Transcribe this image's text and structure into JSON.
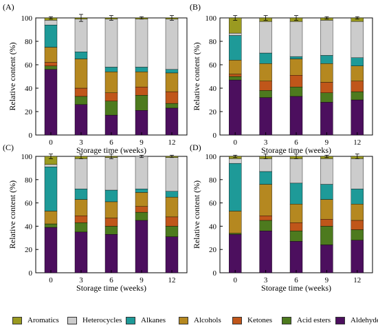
{
  "legend": [
    {
      "name": "Aromatics",
      "color": "#9a9a20"
    },
    {
      "name": "Heterocycles",
      "color": "#cccccc"
    },
    {
      "name": "Alkanes",
      "color": "#1e9a98"
    },
    {
      "name": "Alcohols",
      "color": "#b58820"
    },
    {
      "name": "Ketones",
      "color": "#c0561a"
    },
    {
      "name": "Acid esters",
      "color": "#4d7a1e"
    },
    {
      "name": "Aldehyde",
      "color": "#4c0f5e"
    }
  ],
  "chart_data": [
    {
      "panel": "(A)",
      "type": "bar",
      "stacked": true,
      "xlabel": "Storage time (weeks)",
      "ylabel": "Relative content (%)",
      "categories": [
        "0",
        "3",
        "6",
        "9",
        "12"
      ],
      "ylim": [
        0,
        100
      ],
      "yticks": [
        "0",
        "20",
        "40",
        "60",
        "80",
        "100"
      ],
      "series": [
        {
          "name": "Aldehyde",
          "values": [
            56,
            26,
            17,
            21,
            23
          ]
        },
        {
          "name": "Acid esters",
          "values": [
            3,
            7,
            12,
            13,
            4
          ]
        },
        {
          "name": "Ketones",
          "values": [
            3,
            7,
            7,
            7,
            10
          ]
        },
        {
          "name": "Alcohols",
          "values": [
            13,
            25,
            18,
            13,
            16
          ]
        },
        {
          "name": "Alkanes",
          "values": [
            19,
            6,
            4,
            4,
            3
          ]
        },
        {
          "name": "Heterocycles",
          "values": [
            4,
            28,
            41,
            41,
            43
          ]
        },
        {
          "name": "Aromatics",
          "values": [
            2,
            1,
            1,
            1,
            1
          ]
        }
      ],
      "errors": [
        1,
        3,
        2,
        1,
        2
      ]
    },
    {
      "panel": "(B)",
      "type": "bar",
      "stacked": true,
      "xlabel": "Storage time (weeks)",
      "ylabel": "Relative content (%)",
      "categories": [
        "0",
        "3",
        "6",
        "9",
        "12"
      ],
      "ylim": [
        0,
        100
      ],
      "yticks": [
        "0",
        "20",
        "40",
        "60",
        "80",
        "100"
      ],
      "series": [
        {
          "name": "Aldehyde",
          "values": [
            47,
            32,
            33,
            28,
            30
          ]
        },
        {
          "name": "Acid esters",
          "values": [
            3,
            6,
            8,
            8,
            7
          ]
        },
        {
          "name": "Ketones",
          "values": [
            2,
            8,
            10,
            9,
            9
          ]
        },
        {
          "name": "Alcohols",
          "values": [
            12,
            15,
            14,
            16,
            13
          ]
        },
        {
          "name": "Alkanes",
          "values": [
            21,
            9,
            2,
            7,
            7
          ]
        },
        {
          "name": "Heterocycles",
          "values": [
            2,
            27,
            30,
            30,
            31
          ]
        },
        {
          "name": "Aromatics",
          "values": [
            13,
            3,
            3,
            2,
            3
          ]
        }
      ],
      "errors": [
        2,
        2,
        2,
        1,
        1
      ]
    },
    {
      "panel": "(C)",
      "type": "bar",
      "stacked": true,
      "xlabel": "Storage time (weeks)",
      "ylabel": "Relative content (%)",
      "categories": [
        "0",
        "3",
        "6",
        "9",
        "12"
      ],
      "ylim": [
        0,
        100
      ],
      "yticks": [
        "0",
        "20",
        "40",
        "60",
        "80",
        "100"
      ],
      "series": [
        {
          "name": "Aldehyde",
          "values": [
            39,
            35,
            33,
            45,
            31
          ]
        },
        {
          "name": "Acid esters",
          "values": [
            3,
            8,
            7,
            7,
            9
          ]
        },
        {
          "name": "Ketones",
          "values": [
            0,
            6,
            7,
            5,
            8
          ]
        },
        {
          "name": "Alcohols",
          "values": [
            11,
            14,
            14,
            12,
            17
          ]
        },
        {
          "name": "Alkanes",
          "values": [
            38,
            9,
            10,
            3,
            5
          ]
        },
        {
          "name": "Heterocycles",
          "values": [
            2,
            26,
            28,
            28,
            29
          ]
        },
        {
          "name": "Aromatics",
          "values": [
            7,
            2,
            1,
            0,
            1
          ]
        }
      ],
      "errors": [
        2,
        2,
        2,
        1,
        1
      ]
    },
    {
      "panel": "(D)",
      "type": "bar",
      "stacked": true,
      "xlabel": "Storage time (weeks)",
      "ylabel": "Relative content (%)",
      "categories": [
        "0",
        "3",
        "6",
        "9",
        "12"
      ],
      "ylim": [
        0,
        100
      ],
      "yticks": [
        "0",
        "20",
        "40",
        "60",
        "80",
        "100"
      ],
      "series": [
        {
          "name": "Aldehyde",
          "values": [
            33,
            36,
            27,
            24,
            28
          ]
        },
        {
          "name": "Acid esters",
          "values": [
            1,
            9,
            9,
            16,
            9
          ]
        },
        {
          "name": "Ketones",
          "values": [
            0,
            4,
            7,
            6,
            8
          ]
        },
        {
          "name": "Alcohols",
          "values": [
            19,
            27,
            16,
            17,
            14
          ]
        },
        {
          "name": "Alkanes",
          "values": [
            41,
            11,
            18,
            13,
            13
          ]
        },
        {
          "name": "Heterocycles",
          "values": [
            4,
            11,
            21,
            22,
            26
          ]
        },
        {
          "name": "Aromatics",
          "values": [
            2,
            2,
            2,
            2,
            2
          ]
        }
      ],
      "errors": [
        1,
        2,
        2,
        1,
        2
      ]
    }
  ]
}
